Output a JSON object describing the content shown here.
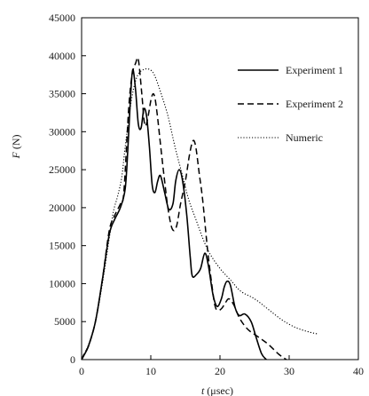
{
  "chart_data": {
    "type": "line",
    "xlabel": "t (μsec)",
    "ylabel": "F (N)",
    "xlim": [
      0,
      40
    ],
    "ylim": [
      0,
      45000
    ],
    "x_ticks": [
      "0",
      "10",
      "20",
      "30",
      "40"
    ],
    "y_ticks": [
      "0",
      "5000",
      "10000",
      "15000",
      "20000",
      "25000",
      "30000",
      "35000",
      "40000",
      "45000"
    ],
    "grid": false,
    "legend_position": "top-right",
    "series": [
      {
        "name": "Experiment 1",
        "style": "solid",
        "color": "#000000",
        "points": [
          [
            0,
            0
          ],
          [
            0.3,
            500
          ],
          [
            1,
            1800
          ],
          [
            2,
            5000
          ],
          [
            3,
            10500
          ],
          [
            4,
            16500
          ],
          [
            4.8,
            18500
          ],
          [
            5.6,
            20000
          ],
          [
            6.3,
            22500
          ],
          [
            6.7,
            28000
          ],
          [
            7.1,
            35000
          ],
          [
            7.4,
            38200
          ],
          [
            7.8,
            35500
          ],
          [
            8.2,
            31000
          ],
          [
            8.6,
            30500
          ],
          [
            9,
            33000
          ],
          [
            9.4,
            32000
          ],
          [
            9.8,
            28000
          ],
          [
            10.2,
            23000
          ],
          [
            10.6,
            22000
          ],
          [
            11,
            23500
          ],
          [
            11.4,
            24200
          ],
          [
            12,
            22000
          ],
          [
            12.6,
            19800
          ],
          [
            13.2,
            20500
          ],
          [
            13.6,
            23500
          ],
          [
            14.1,
            25000
          ],
          [
            14.6,
            23500
          ],
          [
            15.2,
            19000
          ],
          [
            15.7,
            13500
          ],
          [
            16,
            11000
          ],
          [
            16.6,
            11200
          ],
          [
            17.2,
            12000
          ],
          [
            17.8,
            14000
          ],
          [
            18.3,
            12500
          ],
          [
            19,
            8500
          ],
          [
            19.6,
            7000
          ],
          [
            20.2,
            8000
          ],
          [
            20.6,
            9500
          ],
          [
            21,
            10300
          ],
          [
            21.5,
            9800
          ],
          [
            22.2,
            6800
          ],
          [
            22.8,
            5800
          ],
          [
            23.6,
            6000
          ],
          [
            24.5,
            5000
          ],
          [
            25.2,
            3000
          ],
          [
            26,
            800
          ],
          [
            26.7,
            0
          ]
        ]
      },
      {
        "name": "Experiment 2",
        "style": "dashed",
        "color": "#000000",
        "points": [
          [
            0,
            0
          ],
          [
            0.5,
            1000
          ],
          [
            1,
            1800
          ],
          [
            2,
            5000
          ],
          [
            3,
            10500
          ],
          [
            4,
            17000
          ],
          [
            4.8,
            19000
          ],
          [
            5.6,
            20500
          ],
          [
            6.1,
            22000
          ],
          [
            6.8,
            33000
          ],
          [
            7.3,
            37500
          ],
          [
            7.8,
            39000
          ],
          [
            8.2,
            39500
          ],
          [
            8.7,
            35000
          ],
          [
            9.1,
            31000
          ],
          [
            9.5,
            31500
          ],
          [
            10.1,
            34500
          ],
          [
            10.5,
            34800
          ],
          [
            10.9,
            32500
          ],
          [
            11.5,
            27500
          ],
          [
            12,
            23500
          ],
          [
            12.5,
            19800
          ],
          [
            13.1,
            17200
          ],
          [
            13.7,
            17500
          ],
          [
            14.3,
            20500
          ],
          [
            15,
            23500
          ],
          [
            15.6,
            27000
          ],
          [
            16.1,
            28800
          ],
          [
            16.5,
            28000
          ],
          [
            17,
            24500
          ],
          [
            17.5,
            21000
          ],
          [
            18.2,
            14500
          ],
          [
            18.8,
            10000
          ],
          [
            19.3,
            7000
          ],
          [
            19.8,
            6500
          ],
          [
            20.3,
            6800
          ],
          [
            20.8,
            7500
          ],
          [
            21.3,
            8000
          ],
          [
            22,
            7200
          ],
          [
            22.8,
            5500
          ],
          [
            24,
            4000
          ],
          [
            25.5,
            3000
          ],
          [
            27,
            2000
          ],
          [
            28.5,
            700
          ],
          [
            29.6,
            0
          ]
        ]
      },
      {
        "name": "Numeric",
        "style": "dotted",
        "color": "#000000",
        "points": [
          [
            0,
            0
          ],
          [
            1,
            2000
          ],
          [
            2,
            5000
          ],
          [
            3,
            10000
          ],
          [
            4,
            16000
          ],
          [
            4.6,
            19500
          ],
          [
            5.2,
            21500
          ],
          [
            5.8,
            24000
          ],
          [
            6.3,
            28000
          ],
          [
            7,
            33000
          ],
          [
            7.6,
            36000
          ],
          [
            8.2,
            37600
          ],
          [
            9,
            38200
          ],
          [
            9.8,
            38200
          ],
          [
            10.5,
            37500
          ],
          [
            11.5,
            35000
          ],
          [
            12.5,
            32000
          ],
          [
            13.5,
            28000
          ],
          [
            14.5,
            24500
          ],
          [
            15.5,
            21000
          ],
          [
            16.5,
            18500
          ],
          [
            17.5,
            16000
          ],
          [
            18.5,
            14000
          ],
          [
            20,
            12000
          ],
          [
            21.5,
            10500
          ],
          [
            23,
            9000
          ],
          [
            25,
            8000
          ],
          [
            27,
            6600
          ],
          [
            29,
            5200
          ],
          [
            31,
            4200
          ],
          [
            33,
            3600
          ],
          [
            34,
            3400
          ]
        ]
      }
    ]
  }
}
